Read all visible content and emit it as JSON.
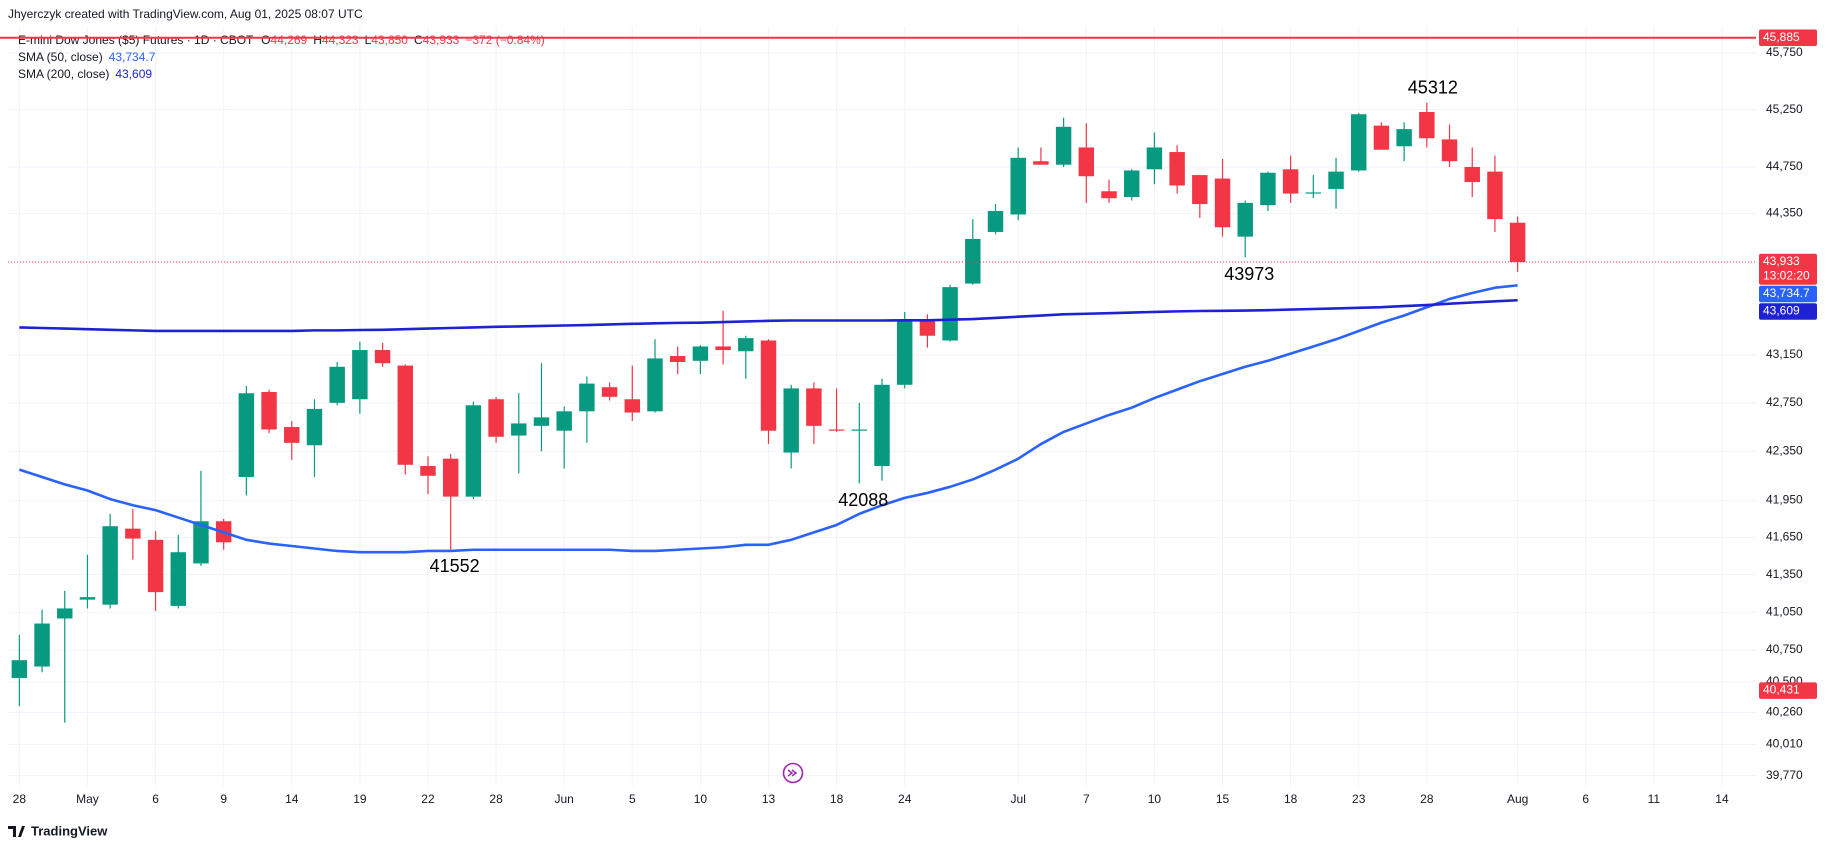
{
  "header": {
    "attribution": "Jhyerczyk created with TradingView.com, Aug 01, 2025 08:07 UTC",
    "symbol": "E-mini Dow Jones ($5) Futures · 1D · CBOT",
    "ohlc": [
      {
        "key": "O",
        "value": "44,269"
      },
      {
        "key": "H",
        "value": "44,323"
      },
      {
        "key": "L",
        "value": "43,850"
      },
      {
        "key": "C",
        "value": "43,933"
      }
    ],
    "change": "−372 (−0.84%)"
  },
  "footer": {
    "brand": "TradingView"
  },
  "chart_data": {
    "type": "candlestick",
    "log_scale": true,
    "grid": true,
    "up_color": "#089981",
    "down_color": "#f23645",
    "categories": [
      "28",
      null,
      null,
      "May",
      null,
      null,
      "6",
      null,
      null,
      "9",
      null,
      null,
      "14",
      null,
      null,
      "19",
      null,
      null,
      "22",
      null,
      null,
      "28",
      null,
      null,
      "Jun",
      null,
      null,
      "5",
      null,
      null,
      "10",
      null,
      null,
      "13",
      null,
      null,
      "18",
      null,
      null,
      "24",
      null,
      null,
      null,
      null,
      "Jul",
      null,
      null,
      "7",
      null,
      null,
      "10",
      null,
      null,
      "15",
      null,
      null,
      "18",
      null,
      null,
      "23",
      null,
      null,
      "28",
      null,
      null,
      null,
      "Aug",
      null,
      null,
      "6",
      null,
      null,
      "11",
      null,
      null,
      "14",
      null
    ],
    "open": [
      40530,
      40620,
      41000,
      41150,
      41110,
      41720,
      41630,
      41100,
      41440,
      41780,
      42140,
      42840,
      42550,
      42400,
      42750,
      42780,
      43190,
      43060,
      42230,
      42290,
      41980,
      42780,
      42480,
      42560,
      42520,
      42680,
      42880,
      42780,
      42680,
      43140,
      43100,
      43220,
      43180,
      43270,
      42340,
      42870,
      42530,
      42520,
      42230,
      42900,
      43430,
      43270,
      43750,
      44190,
      44340,
      44800,
      44770,
      44920,
      44540,
      44490,
      44730,
      44880,
      44680,
      44650,
      44150,
      44420,
      44730,
      44520,
      44560,
      44720,
      45110,
      44930,
      45230,
      44990,
      44750,
      44710,
      44269,
      null,
      null,
      null,
      null,
      null,
      null,
      null,
      null,
      null,
      null
    ],
    "high": [
      40870,
      41070,
      41220,
      41510,
      41840,
      41880,
      41700,
      41670,
      42190,
      41800,
      42890,
      42860,
      42600,
      42780,
      43090,
      43260,
      43250,
      43070,
      42310,
      42330,
      42760,
      42800,
      42830,
      43080,
      42720,
      42970,
      42920,
      43060,
      43280,
      43220,
      43230,
      43520,
      43310,
      43280,
      42900,
      42920,
      42870,
      42750,
      42950,
      43510,
      43490,
      43740,
      44300,
      44430,
      44920,
      44920,
      45180,
      45130,
      44640,
      44730,
      45050,
      44940,
      44680,
      44820,
      44460,
      44710,
      44850,
      44680,
      44830,
      45220,
      45140,
      45140,
      45312,
      45120,
      44920,
      44850,
      44323,
      null,
      null,
      null,
      null,
      null,
      null,
      null,
      null,
      null,
      null
    ],
    "low": [
      40310,
      40575,
      40180,
      41080,
      41080,
      41470,
      41060,
      41080,
      41420,
      41550,
      41990,
      42500,
      42280,
      42140,
      42730,
      42660,
      43050,
      42160,
      42000,
      41552,
      41960,
      42420,
      42170,
      42350,
      42210,
      42420,
      42770,
      42600,
      42670,
      42990,
      42990,
      43070,
      42950,
      42410,
      42210,
      42410,
      42510,
      42088,
      42110,
      42870,
      43210,
      43260,
      43740,
      44170,
      44290,
      44770,
      44750,
      44440,
      44440,
      44460,
      44600,
      44520,
      44310,
      44150,
      43973,
      44370,
      44440,
      44480,
      44390,
      44710,
      44900,
      44800,
      44920,
      44750,
      44490,
      44190,
      43850,
      null,
      null,
      null,
      null,
      null,
      null,
      null,
      null,
      null,
      null
    ],
    "close": [
      40670,
      40960,
      41080,
      41170,
      41740,
      41640,
      41210,
      41530,
      41780,
      41610,
      42830,
      42530,
      42420,
      42700,
      43050,
      43190,
      43080,
      42240,
      42150,
      41980,
      42730,
      42470,
      42580,
      42630,
      42680,
      42910,
      42800,
      42670,
      43120,
      43090,
      43220,
      43190,
      43290,
      42520,
      42870,
      42560,
      42520,
      42530,
      42900,
      43430,
      43310,
      43720,
      44130,
      44370,
      44830,
      44770,
      45100,
      44670,
      44480,
      44720,
      44920,
      44590,
      44430,
      44230,
      44440,
      44700,
      44520,
      44530,
      44710,
      45210,
      44900,
      45080,
      45000,
      44800,
      44620,
      44300,
      43933,
      null,
      null,
      null,
      null,
      null,
      null,
      null,
      null,
      null,
      null
    ],
    "overlays": [
      {
        "name": "SMA (50, close)",
        "color": "#2962ff",
        "value_label": "43,734.7",
        "values": [
          42200,
          42140,
          42080,
          42030,
          41960,
          41910,
          41870,
          41810,
          41750,
          41690,
          41630,
          41600,
          41580,
          41560,
          41540,
          41530,
          41530,
          41530,
          41540,
          41540,
          41550,
          41550,
          41550,
          41550,
          41550,
          41550,
          41550,
          41540,
          41540,
          41550,
          41560,
          41570,
          41590,
          41590,
          41630,
          41690,
          41750,
          41840,
          41910,
          41970,
          42010,
          42060,
          42120,
          42200,
          42290,
          42410,
          42510,
          42580,
          42650,
          42710,
          42790,
          42860,
          42930,
          42990,
          43050,
          43100,
          43160,
          43220,
          43280,
          43350,
          43420,
          43480,
          43550,
          43620,
          43670,
          43715,
          43734.7,
          null,
          null,
          null,
          null,
          null,
          null,
          null,
          null,
          null,
          null
        ]
      },
      {
        "name": "SMA (200, close)",
        "color": "#1e22d4",
        "value_label": "43,609",
        "values": [
          43380,
          43375,
          43370,
          43365,
          43360,
          43355,
          43350,
          43350,
          43350,
          43350,
          43350,
          43350,
          43350,
          43355,
          43355,
          43358,
          43360,
          43365,
          43370,
          43375,
          43380,
          43385,
          43388,
          43392,
          43396,
          43400,
          43405,
          43410,
          43414,
          43418,
          43420,
          43425,
          43430,
          43435,
          43438,
          43438,
          43438,
          43438,
          43438,
          43440,
          43440,
          43445,
          43450,
          43460,
          43470,
          43480,
          43490,
          43495,
          43500,
          43505,
          43510,
          43515,
          43518,
          43520,
          43522,
          43525,
          43530,
          43535,
          43540,
          43545,
          43550,
          43560,
          43568,
          43580,
          43590,
          43600,
          43609,
          null,
          null,
          null,
          null,
          null,
          null,
          null,
          null,
          null,
          null
        ]
      }
    ],
    "ylim": [
      39690,
      45990
    ],
    "yticks": [
      {
        "value": 45750,
        "label": "45,750"
      },
      {
        "value": 45250,
        "label": "45,250"
      },
      {
        "value": 44750,
        "label": "44,750"
      },
      {
        "value": 44350,
        "label": "44,350"
      },
      {
        "value": 43150,
        "label": "43,150"
      },
      {
        "value": 42750,
        "label": "42,750"
      },
      {
        "value": 42350,
        "label": "42,350"
      },
      {
        "value": 41950,
        "label": "41,950"
      },
      {
        "value": 41650,
        "label": "41,650"
      },
      {
        "value": 41350,
        "label": "41,350"
      },
      {
        "value": 41050,
        "label": "41,050"
      },
      {
        "value": 40750,
        "label": "40,750"
      },
      {
        "value": 40500,
        "label": "40,500"
      },
      {
        "value": 40260,
        "label": "40,260"
      },
      {
        "value": 40010,
        "label": "40,010"
      },
      {
        "value": 39770,
        "label": "39,770"
      }
    ],
    "price_lines": [
      {
        "value": 45885,
        "label": "45,885",
        "color": "#f23645",
        "style": "solid"
      },
      {
        "value": 43933,
        "label": "43,933",
        "color": "#f23645",
        "style": "dotted",
        "countdown": "13:02:20"
      }
    ],
    "price_badges": [
      {
        "value": 40431,
        "label": "40,431",
        "color": "#f23645"
      }
    ],
    "annotations": [
      41552,
      42088,
      43973,
      45312
    ]
  }
}
